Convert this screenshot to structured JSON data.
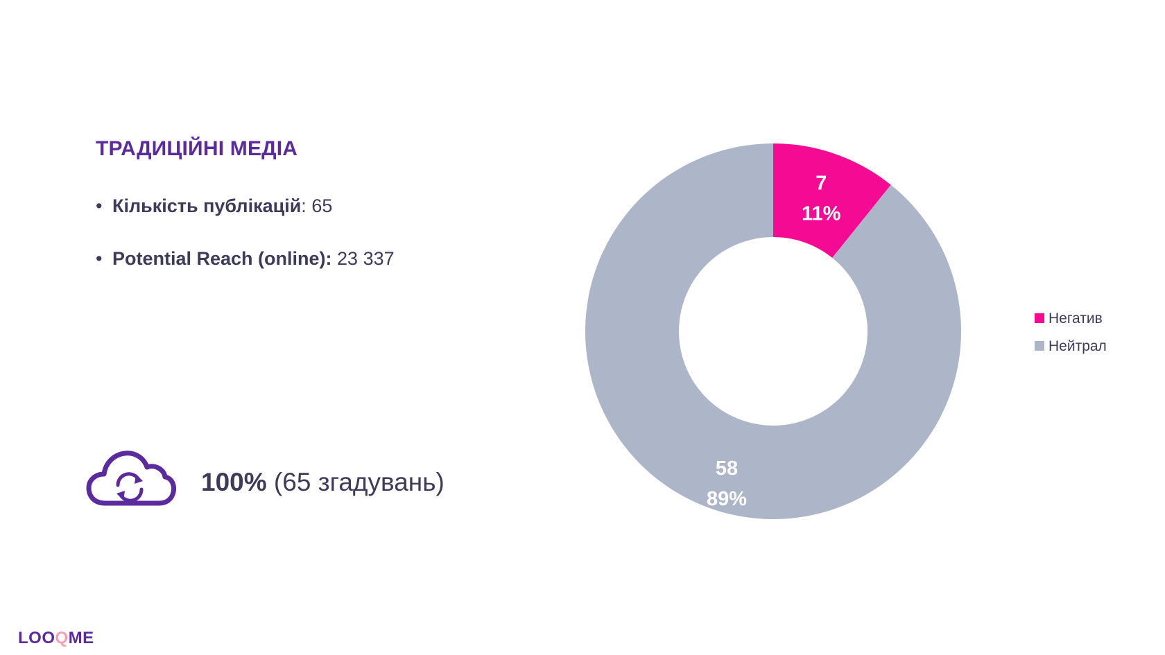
{
  "title": "ТРАДИЦІЙНІ МЕДІА",
  "bullets": [
    {
      "label": "Кількість публікацій",
      "sep": ":",
      "value": " 65"
    },
    {
      "label": "Potential Reach (online):",
      "sep": "",
      "value": " 23 337"
    }
  ],
  "mentions": {
    "percent": "100%",
    "detail": " (65 згадувань)"
  },
  "logo": {
    "part1": "LOO",
    "part2": "Q",
    "part3": "ME"
  },
  "icons": {
    "cloud": "cloud-sync-icon"
  },
  "colors": {
    "negative": "#f50a94",
    "neutral": "#adb5c8",
    "accent": "#5b2a9e"
  },
  "chart_data": {
    "type": "pie",
    "donut": true,
    "categories": [
      "Негатив",
      "Нейтрал"
    ],
    "values": [
      7,
      58
    ],
    "percent_labels": [
      "11%",
      "89%"
    ],
    "value_labels": [
      "7",
      "58"
    ],
    "legend_position": "right",
    "title": ""
  }
}
